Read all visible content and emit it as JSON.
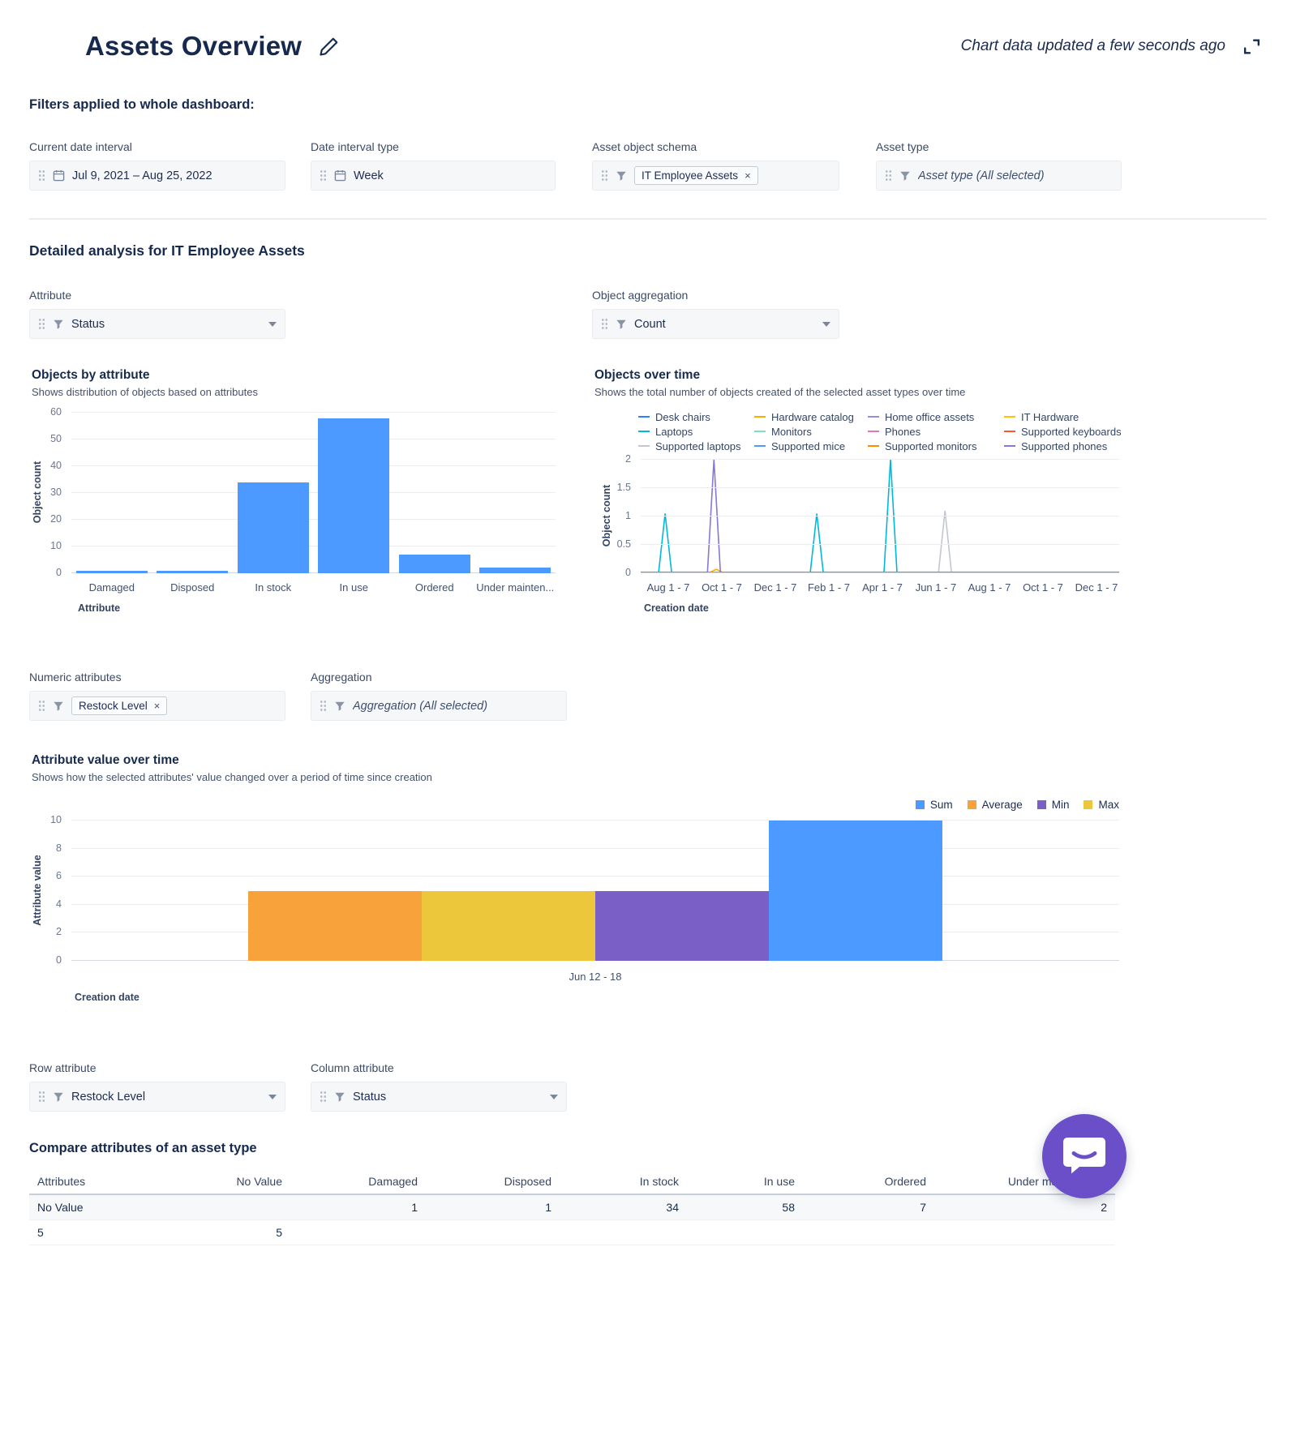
{
  "header": {
    "title": "Assets Overview",
    "updated": "Chart data updated a few seconds ago"
  },
  "filters": {
    "section_title": "Filters applied to whole dashboard:",
    "date_interval": {
      "label": "Current date interval",
      "value": "Jul 9, 2021  –  Aug 25, 2022"
    },
    "interval_type": {
      "label": "Date interval type",
      "value": "Week"
    },
    "object_schema": {
      "label": "Asset object schema",
      "tag": "IT Employee Assets",
      "remove": "×"
    },
    "asset_type": {
      "label": "Asset type",
      "value": "Asset type (All selected)"
    }
  },
  "detail": {
    "section_title": "Detailed analysis for IT Employee Assets",
    "attribute": {
      "label": "Attribute",
      "value": "Status"
    },
    "object_aggregation": {
      "label": "Object aggregation",
      "value": "Count"
    },
    "numeric_attributes": {
      "label": "Numeric attributes",
      "tag": "Restock Level",
      "remove": "×"
    },
    "aggregation": {
      "label": "Aggregation",
      "value": "Aggregation (All selected)"
    },
    "row_attribute": {
      "label": "Row attribute",
      "value": "Restock Level"
    },
    "column_attribute": {
      "label": "Column attribute",
      "value": "Status"
    }
  },
  "ui_colors": {
    "accent_blue": "#4C9AFF",
    "chat_purple": "#6A4FC9"
  },
  "chart_data": [
    {
      "id": "objects_by_attribute",
      "type": "bar",
      "title": "Objects by attribute",
      "subtitle": "Shows distribution of objects based on attributes",
      "categories": [
        "Damaged",
        "Disposed",
        "In stock",
        "In use",
        "Ordered",
        "Under mainten..."
      ],
      "values": [
        1,
        1,
        34,
        58,
        7,
        2
      ],
      "xlabel": "Attribute",
      "ylabel": "Object count",
      "ylim": [
        0,
        60
      ],
      "yticks": [
        0,
        10,
        20,
        30,
        40,
        50,
        60
      ],
      "bar_color": "#4C9AFF"
    },
    {
      "id": "objects_over_time",
      "type": "line",
      "title": "Objects over time",
      "subtitle": "Shows the total number of objects created of the selected asset types over time",
      "xlabel": "Creation date",
      "ylabel": "Object count",
      "ylim": [
        0,
        2
      ],
      "yticks": [
        0,
        0.5,
        1,
        1.5,
        2
      ],
      "xticks": [
        "Aug 1 - 7",
        "Oct 1 - 7",
        "Dec 1 - 7",
        "Feb 1 - 7",
        "Apr 1 - 7",
        "Jun 1 - 7",
        "Aug 1 - 7",
        "Oct 1 - 7",
        "Dec 1 - 7"
      ],
      "series": [
        {
          "name": "Desk chairs",
          "color": "#2684FF",
          "spikes": []
        },
        {
          "name": "Hardware catalog",
          "color": "#FFAB00",
          "spikes": [
            {
              "x": 0.158,
              "peak": 0.07
            }
          ]
        },
        {
          "name": "Home office assets",
          "color": "#998DD9",
          "spikes": []
        },
        {
          "name": "IT Hardware",
          "color": "#FFC400",
          "spikes": []
        },
        {
          "name": "Laptops",
          "color": "#00B8D9",
          "spikes": [
            {
              "x": 0.051,
              "peak": 1.05
            },
            {
              "x": 0.368,
              "peak": 1.05
            },
            {
              "x": 0.522,
              "peak": 2
            }
          ]
        },
        {
          "name": "Monitors",
          "color": "#79E2C0",
          "spikes": []
        },
        {
          "name": "Phones",
          "color": "#E774BB",
          "spikes": []
        },
        {
          "name": "Supported keyboards",
          "color": "#FF5630",
          "spikes": []
        },
        {
          "name": "Supported laptops",
          "color": "#C1C7D0",
          "spikes": [
            {
              "x": 0.636,
              "peak": 1.1
            }
          ]
        },
        {
          "name": "Supported mice",
          "color": "#4C9AFF",
          "spikes": []
        },
        {
          "name": "Supported monitors",
          "color": "#FF8B00",
          "spikes": []
        },
        {
          "name": "Supported phones",
          "color": "#8777D9",
          "spikes": [
            {
              "x": 0.153,
              "peak": 2
            }
          ]
        }
      ]
    },
    {
      "id": "attribute_value_over_time",
      "type": "bar",
      "title": "Attribute value over time",
      "subtitle": "Shows how the selected attributes' value changed over a period of time since creation",
      "xlabel": "Creation date",
      "ylabel": "Attribute value",
      "ylim": [
        0,
        10
      ],
      "yticks": [
        0,
        2,
        4,
        6,
        8,
        10
      ],
      "categories": [
        "Jun 12 - 18"
      ],
      "legend": [
        {
          "name": "Sum",
          "color": "#4C9AFF"
        },
        {
          "name": "Average",
          "color": "#F7A23B"
        },
        {
          "name": "Min",
          "color": "#7A5FC7"
        },
        {
          "name": "Max",
          "color": "#EDC73B"
        }
      ],
      "series": [
        {
          "name": "Average",
          "color": "#F7A23B",
          "value": 5
        },
        {
          "name": "Max",
          "color": "#EDC73B",
          "value": 5
        },
        {
          "name": "Min",
          "color": "#7A5FC7",
          "value": 5
        },
        {
          "name": "Sum",
          "color": "#4C9AFF",
          "value": 10
        }
      ]
    }
  ],
  "table": {
    "section_title": "Compare attributes of an asset type",
    "columns": [
      "Attributes",
      "No Value",
      "Damaged",
      "Disposed",
      "In stock",
      "In use",
      "Ordered",
      "Under maintenance"
    ],
    "rows": [
      [
        "No Value",
        "",
        "1",
        "1",
        "34",
        "58",
        "7",
        "2"
      ],
      [
        "5",
        "5",
        "",
        "",
        "",
        "",
        "",
        ""
      ]
    ]
  }
}
